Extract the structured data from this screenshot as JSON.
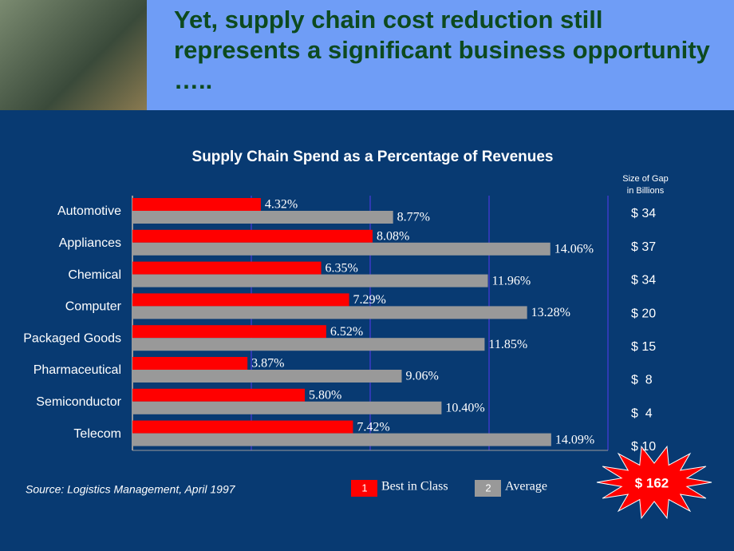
{
  "header": {
    "title": "Yet, supply chain cost reduction still represents a significant business opportunity ….."
  },
  "chart_data": {
    "type": "bar",
    "orientation": "horizontal",
    "title": "Supply Chain Spend as a Percentage of Revenues",
    "categories": [
      "Automotive",
      "Appliances",
      "Chemical",
      "Computer",
      "Packaged Goods",
      "Pharmaceutical",
      "Semiconductor",
      "Telecom"
    ],
    "series": [
      {
        "name": "Best in Class",
        "marker_label": "1",
        "color": "#ff0000",
        "values": [
          4.32,
          8.08,
          6.35,
          7.29,
          6.52,
          3.87,
          5.8,
          7.42
        ],
        "value_labels": [
          "4.32%",
          "8.08%",
          "6.35%",
          "7.29%",
          "6.52%",
          "3.87%",
          "5.80%",
          "7.42%"
        ]
      },
      {
        "name": "Average",
        "marker_label": "2",
        "color": "#999999",
        "values": [
          8.77,
          14.06,
          11.96,
          13.28,
          11.85,
          9.06,
          10.4,
          14.09
        ],
        "value_labels": [
          "8.77%",
          "14.06%",
          "11.96%",
          "13.28%",
          "11.85%",
          "9.06%",
          "10.40%",
          "14.09%"
        ]
      }
    ],
    "xlim": [
      0,
      16
    ],
    "xticks": [
      0,
      4,
      8,
      12,
      16
    ],
    "grid": true,
    "gap": {
      "header": [
        "Size of Gap",
        "in Billions"
      ],
      "labels": [
        "$ 34",
        "$ 37",
        "$ 34",
        "$ 20",
        "$ 15",
        "$  8",
        "$  4",
        "$ 10"
      ],
      "total": "$ 162"
    },
    "source": "Source: Logistics Management, April 1997"
  }
}
